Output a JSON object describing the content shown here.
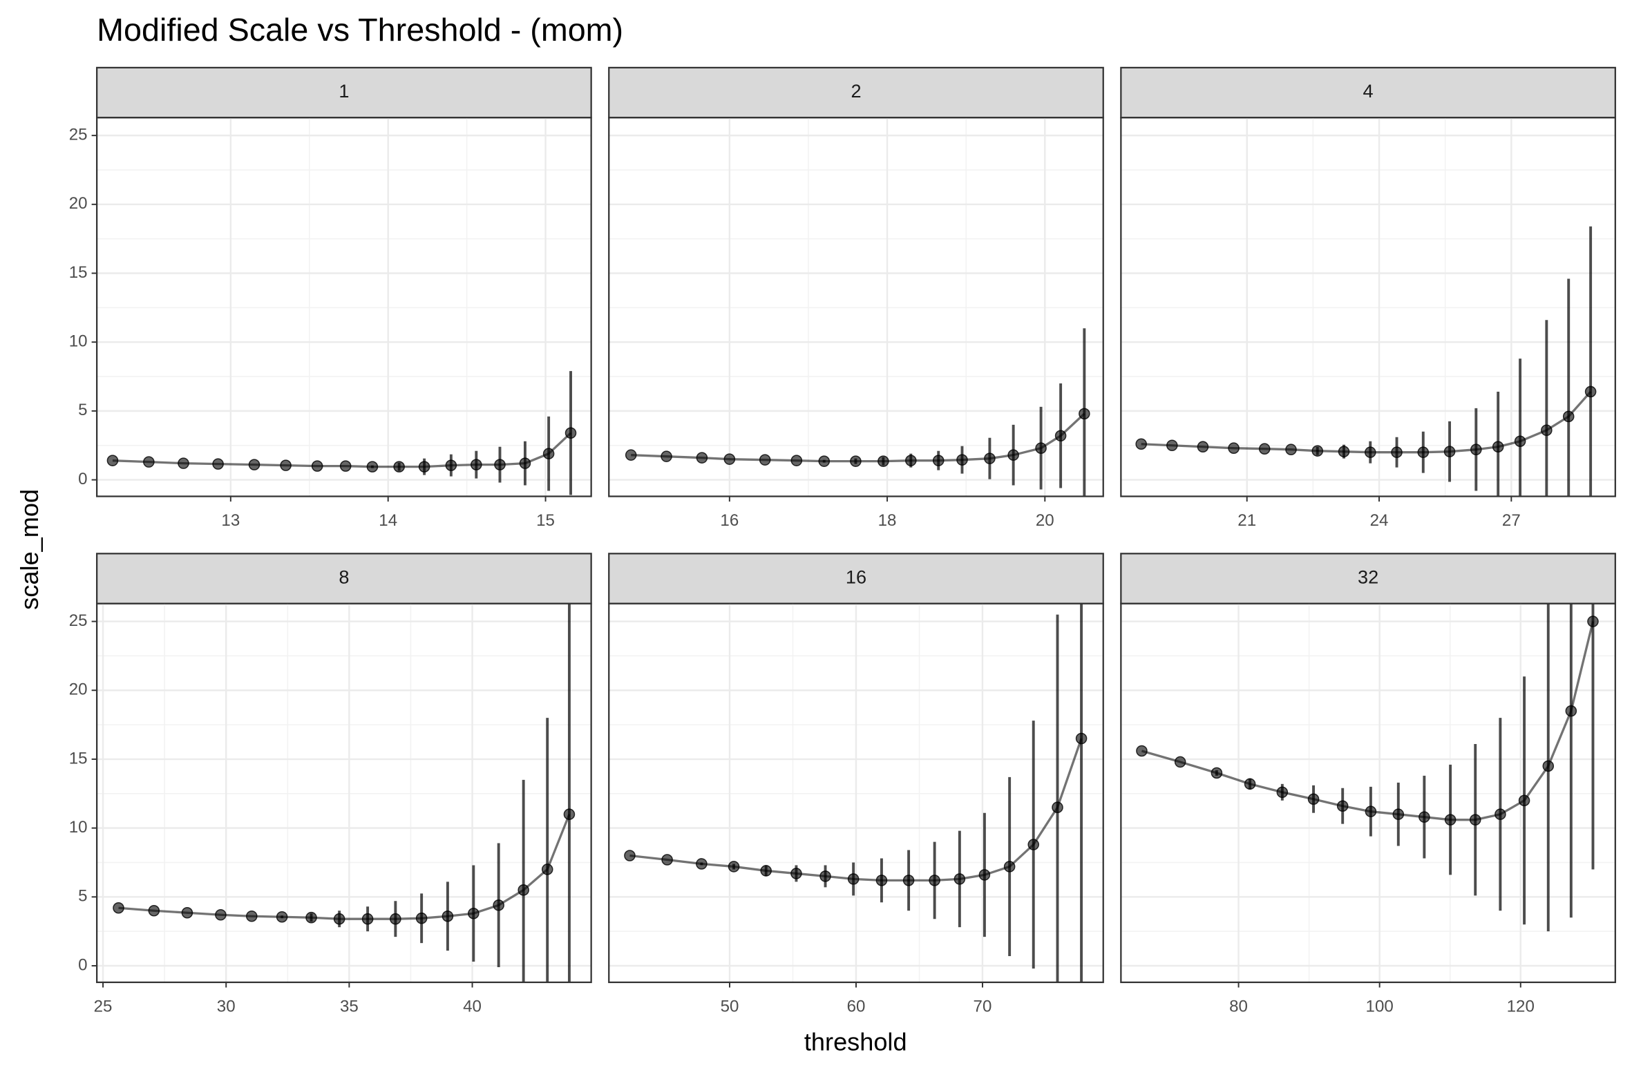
{
  "title": "Modified Scale vs Threshold -  (mom)",
  "x_label": "threshold",
  "y_label": "scale_mod",
  "chart_data": [
    {
      "type": "line",
      "strip": "1",
      "x": [
        12.25,
        12.48,
        12.7,
        12.92,
        13.15,
        13.35,
        13.55,
        13.73,
        13.9,
        14.07,
        14.23,
        14.4,
        14.56,
        14.71,
        14.87,
        15.02,
        15.16
      ],
      "series": [
        {
          "color": "#000000",
          "values": [
            1.4,
            1.3,
            1.2,
            1.15,
            1.1,
            1.05,
            1.0,
            1.0,
            0.95,
            0.95,
            0.95,
            1.05,
            1.1,
            1.1,
            1.2,
            1.9,
            3.4
          ],
          "errors": [
            0,
            0,
            0,
            0,
            0,
            0,
            0,
            0,
            0.1,
            0.3,
            0.6,
            0.8,
            1.0,
            1.3,
            1.6,
            2.7,
            4.5
          ]
        }
      ],
      "xlim": [
        12.15,
        15.29
      ],
      "ylim": [
        -1.2,
        26.3
      ],
      "xticks": [
        13,
        14,
        15
      ],
      "yticks": [
        0,
        5,
        10,
        15,
        20,
        25
      ],
      "grid": true
    },
    {
      "type": "line",
      "strip": "2",
      "x": [
        14.75,
        15.2,
        15.65,
        16.0,
        16.45,
        16.85,
        17.2,
        17.6,
        17.95,
        18.3,
        18.65,
        18.95,
        19.3,
        19.6,
        19.95,
        20.2,
        20.5
      ],
      "series": [
        {
          "color": "#000000",
          "values": [
            1.8,
            1.7,
            1.6,
            1.5,
            1.45,
            1.4,
            1.35,
            1.35,
            1.35,
            1.4,
            1.4,
            1.45,
            1.55,
            1.8,
            2.3,
            3.2,
            4.8
          ],
          "errors": [
            0,
            0,
            0,
            0,
            0,
            0,
            0.1,
            0.2,
            0.3,
            0.5,
            0.7,
            1.0,
            1.5,
            2.2,
            3.0,
            3.8,
            6.2
          ]
        }
      ],
      "xlim": [
        14.47,
        20.74
      ],
      "ylim": [
        -1.2,
        26.3
      ],
      "xticks": [
        16,
        18,
        20
      ],
      "yticks": [
        0,
        5,
        10,
        15,
        20,
        25
      ],
      "grid": true
    },
    {
      "type": "line",
      "strip": "4",
      "x": [
        18.6,
        19.3,
        20.0,
        20.7,
        21.4,
        22.0,
        22.6,
        23.2,
        23.8,
        24.4,
        25.0,
        25.6,
        26.2,
        26.7,
        27.2,
        27.8,
        28.3,
        28.8
      ],
      "series": [
        {
          "color": "#000000",
          "values": [
            2.6,
            2.5,
            2.4,
            2.3,
            2.25,
            2.2,
            2.1,
            2.05,
            2.0,
            2.0,
            2.0,
            2.05,
            2.2,
            2.4,
            2.8,
            3.6,
            4.6,
            6.4
          ],
          "errors": [
            0,
            0,
            0,
            0,
            0,
            0,
            0.3,
            0.5,
            0.8,
            1.1,
            1.5,
            2.2,
            3.0,
            4.0,
            6.0,
            8.0,
            10.0,
            12.0
          ]
        }
      ],
      "xlim": [
        18.14,
        29.36
      ],
      "ylim": [
        -1.2,
        26.3
      ],
      "xticks": [
        21,
        24,
        27
      ],
      "yticks": [
        0,
        5,
        10,
        15,
        20,
        25
      ],
      "grid": true
    },
    {
      "type": "line",
      "strip": "8",
      "x": [
        25.63,
        27.07,
        28.42,
        29.78,
        31.04,
        32.27,
        33.46,
        34.6,
        35.75,
        36.88,
        37.94,
        39.0,
        40.05,
        41.07,
        42.08,
        43.05,
        43.94
      ],
      "series": [
        {
          "color": "#000000",
          "values": [
            4.2,
            4.0,
            3.85,
            3.7,
            3.6,
            3.55,
            3.5,
            3.4,
            3.4,
            3.4,
            3.45,
            3.6,
            3.8,
            4.4,
            5.5,
            7.0,
            11.0
          ],
          "errors": [
            0,
            0,
            0,
            0,
            0,
            0.1,
            0.3,
            0.6,
            0.9,
            1.3,
            1.8,
            2.5,
            3.5,
            4.5,
            8,
            11,
            16
          ]
        }
      ],
      "xlim": [
        24.75,
        44.83
      ],
      "ylim": [
        -1.2,
        26.3
      ],
      "xticks": [
        25,
        30,
        35,
        40
      ],
      "yticks": [
        0,
        5,
        10,
        15,
        20,
        25
      ],
      "grid": true
    },
    {
      "type": "line",
      "strip": "16",
      "x": [
        42.1,
        45.06,
        47.78,
        50.33,
        52.88,
        55.27,
        57.57,
        59.79,
        62.02,
        64.16,
        66.21,
        68.19,
        70.16,
        72.14,
        74.03,
        75.93,
        77.82
      ],
      "series": [
        {
          "color": "#000000",
          "values": [
            8.0,
            7.7,
            7.4,
            7.2,
            6.9,
            6.7,
            6.5,
            6.3,
            6.2,
            6.2,
            6.2,
            6.3,
            6.6,
            7.2,
            8.8,
            11.5,
            16.5
          ],
          "errors": [
            0,
            0,
            0.1,
            0.2,
            0.4,
            0.6,
            0.8,
            1.2,
            1.6,
            2.2,
            2.8,
            3.5,
            4.5,
            6.5,
            9,
            14,
            20
          ]
        }
      ],
      "xlim": [
        40.45,
        79.55
      ],
      "ylim": [
        -1.2,
        26.3
      ],
      "xticks": [
        50,
        60,
        70
      ],
      "yticks": [
        0,
        5,
        10,
        15,
        20,
        25
      ],
      "grid": true
    },
    {
      "type": "line",
      "strip": "32",
      "x": [
        66.27,
        71.73,
        76.9,
        81.62,
        86.2,
        90.63,
        94.76,
        98.75,
        102.66,
        106.34,
        110.04,
        113.58,
        117.12,
        120.52,
        123.92,
        127.16,
        130.26
      ],
      "series": [
        {
          "color": "#000000",
          "values": [
            15.6,
            14.8,
            14.0,
            13.2,
            12.6,
            12.1,
            11.6,
            11.2,
            11.0,
            10.8,
            10.6,
            10.6,
            11.0,
            12.0,
            14.5,
            18.5,
            25
          ],
          "errors": [
            0,
            0,
            0.2,
            0.4,
            0.6,
            1.0,
            1.3,
            1.8,
            2.3,
            3,
            4,
            5.5,
            7,
            9,
            12,
            15,
            18
          ]
        }
      ],
      "xlim": [
        63.32,
        133.43
      ],
      "ylim": [
        -1.2,
        26.3
      ],
      "xticks": [
        80,
        100,
        120
      ],
      "yticks": [
        0,
        5,
        10,
        15,
        20,
        25
      ],
      "grid": true
    }
  ]
}
